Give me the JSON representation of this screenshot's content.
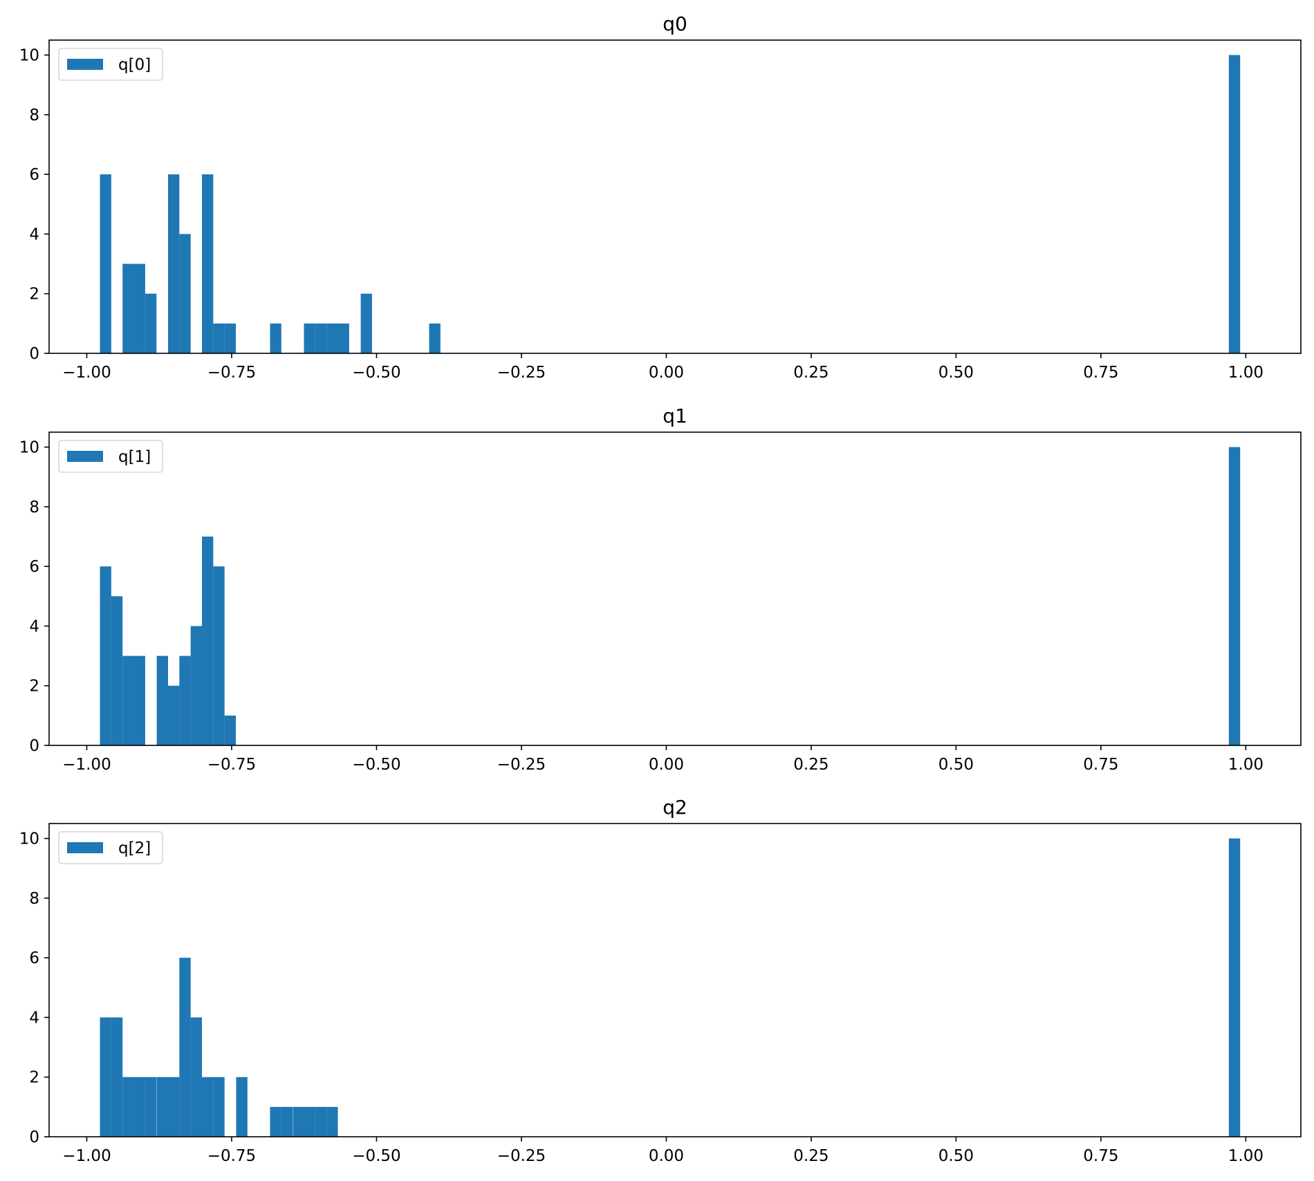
{
  "chart_data": [
    {
      "type": "bar",
      "title": "q0",
      "xlabel": "",
      "ylabel": "",
      "xlim": [
        -1.065,
        1.095
      ],
      "ylim": [
        0,
        10.5
      ],
      "x_ticks": [
        -1.0,
        -0.75,
        -0.5,
        -0.25,
        0.0,
        0.25,
        0.5,
        0.75,
        1.0
      ],
      "x_tick_labels": [
        "−1.00",
        "−0.75",
        "−0.50",
        "−0.25",
        "0.00",
        "0.25",
        "0.50",
        "0.75",
        "1.00"
      ],
      "y_ticks": [
        0,
        2,
        4,
        6,
        8,
        10
      ],
      "y_tick_labels": [
        "0",
        "2",
        "4",
        "6",
        "8",
        "10"
      ],
      "legend_position": "upper-left",
      "grid": false,
      "color": "#1f77b4",
      "bin_width": 0.0195,
      "series": [
        {
          "name": "q[0]",
          "bars": [
            {
              "x": -0.9675,
              "y": 6
            },
            {
              "x": -0.9285,
              "y": 3
            },
            {
              "x": -0.909,
              "y": 3
            },
            {
              "x": -0.8895,
              "y": 2
            },
            {
              "x": -0.85,
              "y": 6
            },
            {
              "x": -0.8305,
              "y": 4
            },
            {
              "x": -0.7915,
              "y": 6
            },
            {
              "x": -0.772,
              "y": 1
            },
            {
              "x": -0.7525,
              "y": 1
            },
            {
              "x": -0.674,
              "y": 1
            },
            {
              "x": -0.6155,
              "y": 1
            },
            {
              "x": -0.596,
              "y": 1
            },
            {
              "x": -0.5765,
              "y": 1
            },
            {
              "x": -0.557,
              "y": 1
            },
            {
              "x": -0.5175,
              "y": 2
            },
            {
              "x": -0.3995,
              "y": 1
            },
            {
              "x": 0.9805,
              "y": 10
            }
          ]
        }
      ]
    },
    {
      "type": "bar",
      "title": "q1",
      "xlabel": "",
      "ylabel": "",
      "xlim": [
        -1.065,
        1.095
      ],
      "ylim": [
        0,
        10.5
      ],
      "x_ticks": [
        -1.0,
        -0.75,
        -0.5,
        -0.25,
        0.0,
        0.25,
        0.5,
        0.75,
        1.0
      ],
      "x_tick_labels": [
        "−1.00",
        "−0.75",
        "−0.50",
        "−0.25",
        "0.00",
        "0.25",
        "0.50",
        "0.75",
        "1.00"
      ],
      "y_ticks": [
        0,
        2,
        4,
        6,
        8,
        10
      ],
      "y_tick_labels": [
        "0",
        "2",
        "4",
        "6",
        "8",
        "10"
      ],
      "legend_position": "upper-left",
      "grid": false,
      "color": "#1f77b4",
      "bin_width": 0.0195,
      "series": [
        {
          "name": "q[1]",
          "bars": [
            {
              "x": -0.9675,
              "y": 6
            },
            {
              "x": -0.948,
              "y": 5
            },
            {
              "x": -0.9285,
              "y": 3
            },
            {
              "x": -0.909,
              "y": 3
            },
            {
              "x": -0.8695,
              "y": 3
            },
            {
              "x": -0.85,
              "y": 2
            },
            {
              "x": -0.8305,
              "y": 3
            },
            {
              "x": -0.811,
              "y": 4
            },
            {
              "x": -0.7915,
              "y": 7
            },
            {
              "x": -0.772,
              "y": 6
            },
            {
              "x": -0.7525,
              "y": 1
            },
            {
              "x": 0.9805,
              "y": 10
            }
          ]
        }
      ]
    },
    {
      "type": "bar",
      "title": "q2",
      "xlabel": "",
      "ylabel": "",
      "xlim": [
        -1.065,
        1.095
      ],
      "ylim": [
        0,
        10.5
      ],
      "x_ticks": [
        -1.0,
        -0.75,
        -0.5,
        -0.25,
        0.0,
        0.25,
        0.5,
        0.75,
        1.0
      ],
      "x_tick_labels": [
        "−1.00",
        "−0.75",
        "−0.50",
        "−0.25",
        "0.00",
        "0.25",
        "0.50",
        "0.75",
        "1.00"
      ],
      "y_ticks": [
        0,
        2,
        4,
        6,
        8,
        10
      ],
      "y_tick_labels": [
        "0",
        "2",
        "4",
        "6",
        "8",
        "10"
      ],
      "legend_position": "upper-left",
      "grid": false,
      "color": "#1f77b4",
      "bin_width": 0.0195,
      "series": [
        {
          "name": "q[2]",
          "bars": [
            {
              "x": -0.9675,
              "y": 4
            },
            {
              "x": -0.948,
              "y": 4
            },
            {
              "x": -0.9285,
              "y": 2
            },
            {
              "x": -0.909,
              "y": 2
            },
            {
              "x": -0.8895,
              "y": 2
            },
            {
              "x": -0.8695,
              "y": 2
            },
            {
              "x": -0.85,
              "y": 2
            },
            {
              "x": -0.8305,
              "y": 6
            },
            {
              "x": -0.811,
              "y": 4
            },
            {
              "x": -0.7915,
              "y": 2
            },
            {
              "x": -0.772,
              "y": 2
            },
            {
              "x": -0.7325,
              "y": 2
            },
            {
              "x": -0.674,
              "y": 1
            },
            {
              "x": -0.6545,
              "y": 1
            },
            {
              "x": -0.6345,
              "y": 1
            },
            {
              "x": -0.6155,
              "y": 1
            },
            {
              "x": -0.596,
              "y": 1
            },
            {
              "x": -0.5765,
              "y": 1
            },
            {
              "x": 0.9805,
              "y": 10
            }
          ]
        }
      ]
    }
  ]
}
